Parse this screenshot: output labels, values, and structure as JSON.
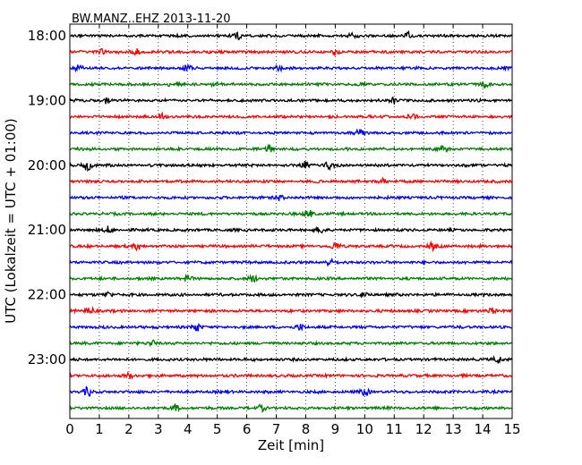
{
  "chart_data": {
    "type": "line",
    "title": "BW.MANZ..EHZ 2013-11-20",
    "xlabel": "Zeit  [min]",
    "ylabel": "UTC (Lokalzeit = UTC + 01:00)",
    "xlim": [
      0,
      15
    ],
    "x_ticks": [
      "0",
      "1",
      "2",
      "3",
      "4",
      "5",
      "6",
      "7",
      "8",
      "9",
      "10",
      "11",
      "12",
      "13",
      "14",
      "15"
    ],
    "y_ticks": [
      "18:00",
      "19:00",
      "20:00",
      "21:00",
      "22:00",
      "23:00"
    ],
    "grid": "vertical-dotted",
    "trace_interval_min": 15,
    "trace_colors": [
      "#000000",
      "#ff0000",
      "#0000ff",
      "#008000"
    ],
    "series": [
      {
        "start": "18:00",
        "bursts": [
          {
            "x": 5.7,
            "amp": 1.2
          },
          {
            "x": 9.6,
            "amp": 1.0
          },
          {
            "x": 11.5,
            "amp": 1.0
          }
        ]
      },
      {
        "start": "18:15",
        "bursts": [
          {
            "x": 1.1,
            "amp": 0.9
          },
          {
            "x": 2.3,
            "amp": 0.9
          },
          {
            "x": 9.0,
            "amp": 0.9
          }
        ]
      },
      {
        "start": "18:30",
        "bursts": [
          {
            "x": 0.3,
            "amp": 0.9
          },
          {
            "x": 4.0,
            "amp": 0.9
          },
          {
            "x": 7.1,
            "amp": 0.9
          }
        ]
      },
      {
        "start": "18:45",
        "bursts": [
          {
            "x": 3.5,
            "amp": 0.9
          },
          {
            "x": 4.9,
            "amp": 0.9
          },
          {
            "x": 14.1,
            "amp": 0.9
          }
        ]
      },
      {
        "start": "19:00",
        "bursts": [
          {
            "x": 1.2,
            "amp": 0.9
          },
          {
            "x": 11.0,
            "amp": 1.0
          }
        ]
      },
      {
        "start": "19:15",
        "bursts": [
          {
            "x": 3.1,
            "amp": 0.9
          },
          {
            "x": 11.6,
            "amp": 1.1
          }
        ]
      },
      {
        "start": "19:30",
        "bursts": [
          {
            "x": 9.8,
            "amp": 1.0
          }
        ]
      },
      {
        "start": "19:45",
        "bursts": [
          {
            "x": 6.8,
            "amp": 1.2
          },
          {
            "x": 12.7,
            "amp": 1.0
          }
        ]
      },
      {
        "start": "20:00",
        "bursts": [
          {
            "x": 0.6,
            "amp": 1.8
          },
          {
            "x": 8.0,
            "amp": 1.2
          },
          {
            "x": 8.8,
            "amp": 1.2
          }
        ]
      },
      {
        "start": "20:15",
        "bursts": [
          {
            "x": 10.6,
            "amp": 1.1
          }
        ]
      },
      {
        "start": "20:30",
        "bursts": [
          {
            "x": 7.1,
            "amp": 1.0
          }
        ]
      },
      {
        "start": "20:45",
        "bursts": [
          {
            "x": 8.1,
            "amp": 1.3
          }
        ]
      },
      {
        "start": "21:00",
        "bursts": [
          {
            "x": 1.3,
            "amp": 1.0
          },
          {
            "x": 8.5,
            "amp": 1.0
          }
        ]
      },
      {
        "start": "21:15",
        "bursts": [
          {
            "x": 2.3,
            "amp": 1.1
          },
          {
            "x": 9.0,
            "amp": 1.3
          },
          {
            "x": 12.3,
            "amp": 1.0
          }
        ]
      },
      {
        "start": "21:30",
        "bursts": [
          {
            "x": 8.8,
            "amp": 1.0
          }
        ]
      },
      {
        "start": "21:45",
        "bursts": [
          {
            "x": 4.0,
            "amp": 0.9
          },
          {
            "x": 6.2,
            "amp": 1.2
          }
        ]
      },
      {
        "start": "22:00",
        "bursts": [
          {
            "x": 1.3,
            "amp": 0.9
          },
          {
            "x": 10.0,
            "amp": 1.0
          }
        ]
      },
      {
        "start": "22:15",
        "bursts": [
          {
            "x": 0.7,
            "amp": 1.1
          },
          {
            "x": 14.3,
            "amp": 1.0
          }
        ]
      },
      {
        "start": "22:30",
        "bursts": [
          {
            "x": 4.3,
            "amp": 1.3
          },
          {
            "x": 7.8,
            "amp": 1.0
          }
        ]
      },
      {
        "start": "22:45",
        "bursts": [
          {
            "x": 2.8,
            "amp": 0.9
          }
        ]
      },
      {
        "start": "23:00",
        "bursts": [
          {
            "x": 14.5,
            "amp": 1.2
          }
        ]
      },
      {
        "start": "23:15",
        "bursts": [
          {
            "x": 2.0,
            "amp": 0.9
          }
        ]
      },
      {
        "start": "23:30",
        "bursts": [
          {
            "x": 0.6,
            "amp": 1.4
          },
          {
            "x": 10.0,
            "amp": 1.3
          }
        ]
      },
      {
        "start": "23:45",
        "bursts": [
          {
            "x": 3.6,
            "amp": 0.9
          },
          {
            "x": 6.5,
            "amp": 0.9
          }
        ]
      }
    ]
  }
}
